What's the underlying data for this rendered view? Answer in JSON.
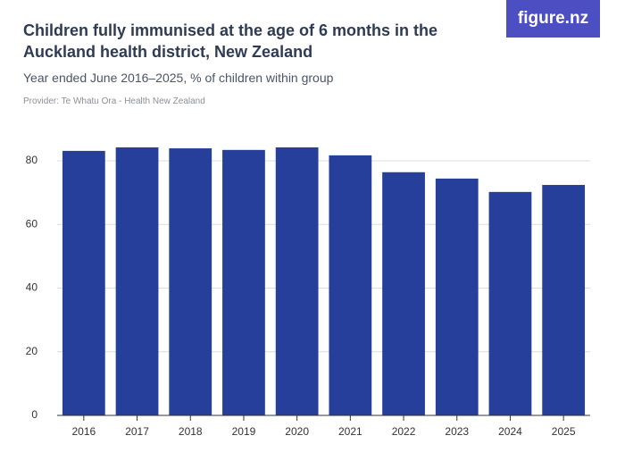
{
  "logo": "figure.nz",
  "chart_data": {
    "type": "bar",
    "title": "Children fully immunised at the age of 6 months in the Auckland health district, New Zealand",
    "subtitle": "Year ended June 2016–2025, % of children within group",
    "provider": "Provider: Te Whatu Ora - Health New Zealand",
    "categories": [
      "2016",
      "2017",
      "2018",
      "2019",
      "2020",
      "2021",
      "2022",
      "2023",
      "2024",
      "2025"
    ],
    "values": [
      83.1,
      84.2,
      83.9,
      83.4,
      84.2,
      81.7,
      76.4,
      74.4,
      70.2,
      72.4
    ],
    "color": "#253f9a",
    "ylim": [
      0,
      87
    ],
    "yticks": [
      0,
      20,
      40,
      60,
      80
    ],
    "grid": true
  }
}
